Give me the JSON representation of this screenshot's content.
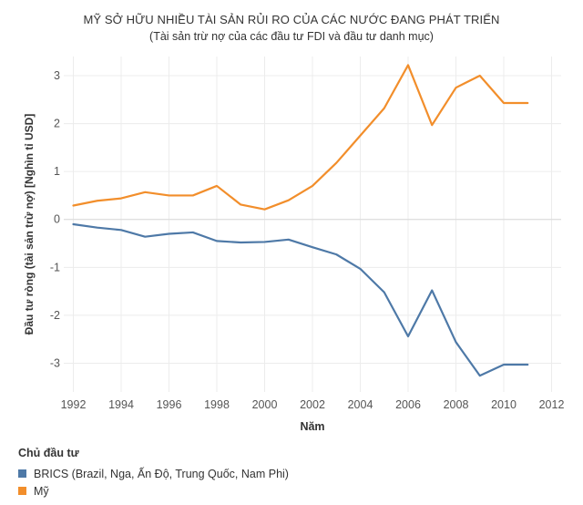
{
  "chart_data": {
    "type": "line",
    "title": "MỸ SỞ HỮU NHIỀU TÀI SẢN RỦI RO CỦA CÁC NƯỚC ĐANG PHÁT TRIỂN",
    "subtitle": "(Tài sản trừ nợ của các đầu tư FDI và đầu tư danh mục)",
    "xlabel": "Năm",
    "ylabel": "Đầu tư ròng (tài sản trừ nợ) [Nghìn tỉ USD]",
    "xlim": [
      1991.6,
      2012.4
    ],
    "ylim": [
      -3.6,
      3.4
    ],
    "x_ticks": [
      "1992",
      "1994",
      "1996",
      "1998",
      "2000",
      "2002",
      "2004",
      "2006",
      "2008",
      "2010",
      "2012"
    ],
    "y_ticks": [
      "-3",
      "-2",
      "-1",
      "0",
      "1",
      "2",
      "3"
    ],
    "grid": true,
    "legend": {
      "title": "Chủ đầu tư",
      "placement": "bottom-left"
    },
    "x": [
      1992,
      1993,
      1994,
      1995,
      1996,
      1997,
      1998,
      1999,
      2000,
      2001,
      2002,
      2003,
      2004,
      2005,
      2006,
      2007,
      2008,
      2009,
      2010,
      2011
    ],
    "series": [
      {
        "name": "BRICS (Brazil, Nga, Ấn Độ, Trung Quốc, Nam Phi)",
        "color": "#4e79a7",
        "values": [
          -0.1,
          -0.17,
          -0.22,
          -0.36,
          -0.3,
          -0.27,
          -0.45,
          -0.48,
          -0.47,
          -0.42,
          -0.58,
          -0.73,
          -1.03,
          -1.52,
          -2.44,
          -1.48,
          -2.56,
          -3.26,
          -3.03,
          -3.03
        ]
      },
      {
        "name": "Mỹ",
        "color": "#f28e2b",
        "values": [
          0.29,
          0.39,
          0.44,
          0.57,
          0.5,
          0.5,
          0.7,
          0.31,
          0.21,
          0.4,
          0.7,
          1.18,
          1.75,
          2.32,
          3.22,
          1.97,
          2.75,
          3.0,
          2.43,
          2.43
        ]
      }
    ]
  }
}
